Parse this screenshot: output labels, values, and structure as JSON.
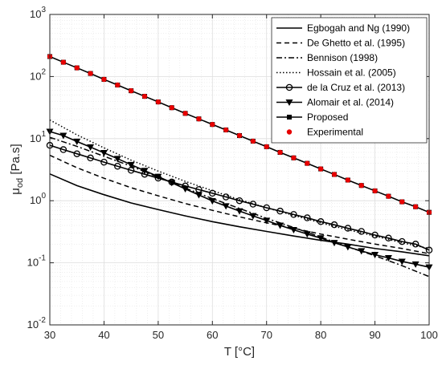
{
  "chart_data": {
    "type": "line",
    "xlabel": "T [°C]",
    "ylabel_main": "μ",
    "ylabel_sub": "od",
    "ylabel_unit": " [Pa.s]",
    "xlim": [
      30,
      100
    ],
    "ylim": [
      0.01,
      1000
    ],
    "yscale": "log",
    "grid": true,
    "legend_position": "top-right",
    "xticks": [
      30,
      40,
      50,
      60,
      70,
      80,
      90,
      100
    ],
    "yticks": [
      {
        "base": "10",
        "exp": "-2",
        "value": 0.01
      },
      {
        "base": "10",
        "exp": "-1",
        "value": 0.1
      },
      {
        "base": "10",
        "exp": "0",
        "value": 1
      },
      {
        "base": "10",
        "exp": "1",
        "value": 10
      },
      {
        "base": "10",
        "exp": "2",
        "value": 100
      },
      {
        "base": "10",
        "exp": "3",
        "value": 1000
      }
    ],
    "series": [
      {
        "name": "Egbogah and Ng (1990)",
        "style": "solid",
        "marker": "none",
        "x": [
          30,
          35,
          40,
          45,
          50,
          55,
          60,
          65,
          70,
          75,
          80,
          85,
          90,
          95,
          100
        ],
        "y": [
          2.7,
          1.75,
          1.25,
          0.92,
          0.72,
          0.57,
          0.46,
          0.38,
          0.32,
          0.27,
          0.23,
          0.2,
          0.17,
          0.15,
          0.13
        ]
      },
      {
        "name": "De Ghetto et al. (1995)",
        "style": "dashed",
        "marker": "none",
        "x": [
          30,
          35,
          40,
          45,
          50,
          55,
          60,
          65,
          70,
          75,
          80,
          85,
          90,
          95,
          100
        ],
        "y": [
          5.4,
          3.4,
          2.3,
          1.62,
          1.2,
          0.9,
          0.7,
          0.55,
          0.44,
          0.36,
          0.29,
          0.24,
          0.2,
          0.17,
          0.14
        ]
      },
      {
        "name": "Bennison (1998)",
        "style": "dashdot",
        "marker": "none",
        "x": [
          30,
          35,
          40,
          45,
          50,
          55,
          60,
          65,
          70,
          75,
          80,
          85,
          90,
          95,
          100
        ],
        "y": [
          10.5,
          7.5,
          5.2,
          3.6,
          2.4,
          1.6,
          1.08,
          0.75,
          0.52,
          0.37,
          0.26,
          0.18,
          0.13,
          0.09,
          0.06
        ]
      },
      {
        "name": "Hossain et al. (2005)",
        "style": "dotted",
        "marker": "none",
        "x": [
          30,
          35,
          40,
          45,
          50,
          55,
          60,
          65,
          70,
          75,
          80,
          85,
          90,
          95,
          100
        ],
        "y": [
          20,
          11.5,
          7.1,
          4.5,
          3.0,
          2.05,
          1.45,
          1.04,
          0.77,
          0.58,
          0.44,
          0.34,
          0.27,
          0.21,
          0.17
        ]
      },
      {
        "name": "de la Cruz et al. (2013)",
        "style": "solid",
        "marker": "circle",
        "x": [
          30,
          32.5,
          35,
          37.5,
          40,
          42.5,
          45,
          47.5,
          50,
          52.5,
          55,
          57.5,
          60,
          62.5,
          65,
          67.5,
          70,
          72.5,
          75,
          77.5,
          80,
          82.5,
          85,
          87.5,
          90,
          92.5,
          95,
          97.5,
          100
        ],
        "y": [
          7.8,
          6.65,
          5.7,
          4.88,
          4.18,
          3.59,
          3.09,
          2.67,
          2.31,
          2.0,
          1.73,
          1.51,
          1.32,
          1.15,
          1.0,
          0.88,
          0.77,
          0.68,
          0.6,
          0.53,
          0.46,
          0.41,
          0.36,
          0.32,
          0.28,
          0.25,
          0.22,
          0.2,
          0.16
        ]
      },
      {
        "name": "Alomair et al. (2014)",
        "style": "solid",
        "marker": "triangle-down",
        "x": [
          30,
          32.5,
          35,
          37.5,
          40,
          42.5,
          45,
          47.5,
          50,
          52.5,
          55,
          57.5,
          60,
          62.5,
          65,
          67.5,
          70,
          72.5,
          75,
          77.5,
          80,
          82.5,
          85,
          87.5,
          90,
          92.5,
          95,
          97.5,
          100
        ],
        "y": [
          13,
          11.2,
          9.0,
          7.3,
          5.9,
          4.75,
          3.8,
          3.05,
          2.45,
          1.95,
          1.55,
          1.24,
          0.99,
          0.82,
          0.68,
          0.57,
          0.48,
          0.4,
          0.34,
          0.29,
          0.25,
          0.21,
          0.18,
          0.155,
          0.135,
          0.12,
          0.105,
          0.095,
          0.085
        ]
      },
      {
        "name": "Proposed",
        "style": "solid",
        "marker": "square",
        "x": [
          30,
          32.5,
          35,
          37.5,
          40,
          42.5,
          45,
          47.5,
          50,
          52.5,
          55,
          57.5,
          60,
          62.5,
          65,
          67.5,
          70,
          72.5,
          75,
          77.5,
          80,
          82.5,
          85,
          87.5,
          90,
          92.5,
          95,
          97.5,
          100
        ],
        "y": [
          210,
          170,
          138,
          112,
          90,
          73,
          59,
          48,
          39,
          31.5,
          25.5,
          20.8,
          16.9,
          13.8,
          11.2,
          9.1,
          7.4,
          6.0,
          4.9,
          4.0,
          3.25,
          2.65,
          2.15,
          1.76,
          1.44,
          1.18,
          0.96,
          0.8,
          0.65
        ]
      },
      {
        "name": "Experimental",
        "style": "none",
        "marker": "red-dot",
        "x": [
          30,
          32.5,
          35,
          37.5,
          40,
          42.5,
          45,
          47.5,
          50,
          52.5,
          55,
          57.5,
          60,
          62.5,
          65,
          67.5,
          70,
          72.5,
          75,
          77.5,
          80,
          82.5,
          85,
          87.5,
          90,
          92.5,
          95,
          97.5,
          100
        ],
        "y": [
          210,
          170,
          138,
          112,
          90,
          73,
          59,
          48,
          39,
          31.5,
          25.5,
          20.8,
          16.9,
          13.8,
          11.2,
          9.1,
          7.4,
          6.0,
          4.9,
          4.0,
          3.25,
          2.65,
          2.15,
          1.76,
          1.44,
          1.18,
          0.96,
          0.8,
          0.65
        ]
      }
    ],
    "colors": {
      "line": "#000000",
      "experimental": "#e60000",
      "grid": "#dedede",
      "axis": "#262626"
    }
  }
}
